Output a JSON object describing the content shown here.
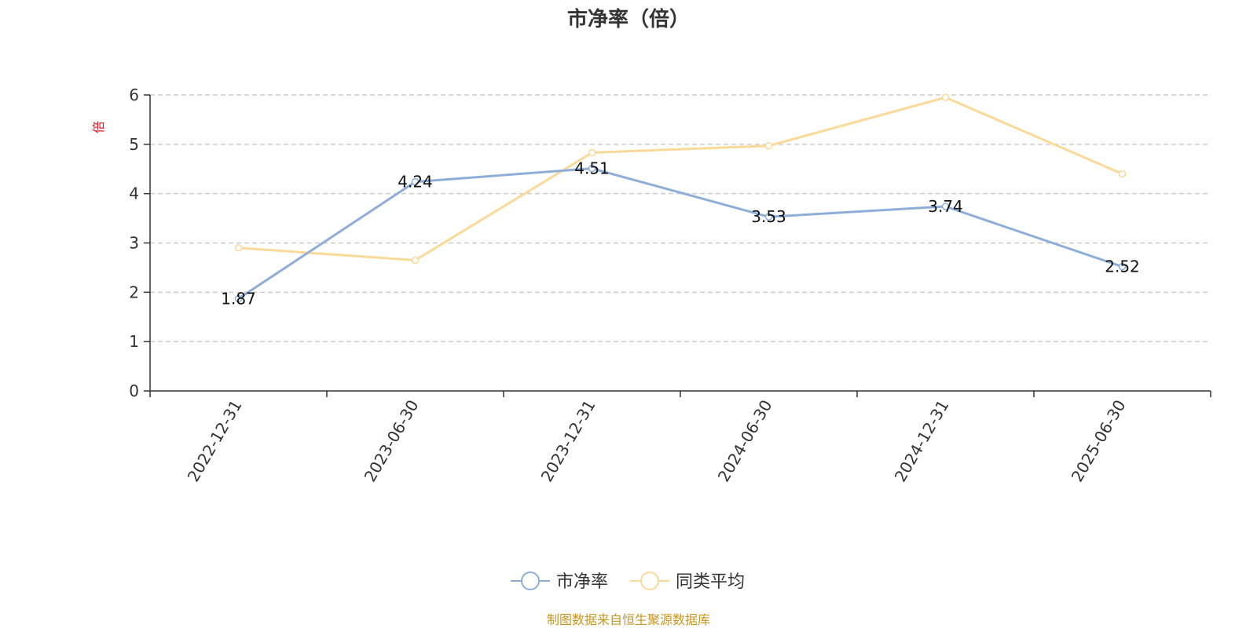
{
  "chart_data": {
    "type": "line",
    "title": "市净率（倍）",
    "ylabel": "倍",
    "xlabel": "",
    "ylim": [
      0,
      6
    ],
    "yticks": [
      0,
      1,
      2,
      3,
      4,
      5,
      6
    ],
    "grid": true,
    "legend_position": "bottom-center",
    "categories": [
      "2022-12-31",
      "2023-06-30",
      "2023-12-31",
      "2024-06-30",
      "2024-12-31",
      "2025-06-30"
    ],
    "series": [
      {
        "name": "市净率",
        "color": "#8eaed8",
        "values": [
          1.87,
          4.24,
          4.51,
          3.53,
          3.74,
          2.52
        ],
        "labels": [
          "1.87",
          "4.24",
          "4.51",
          "3.53",
          "3.74",
          "2.52"
        ],
        "show_labels": true
      },
      {
        "name": "同类平均",
        "color": "#fbd998",
        "values": [
          2.9,
          2.65,
          4.83,
          4.97,
          5.95,
          4.4
        ],
        "show_labels": false
      }
    ],
    "source": "制图数据来自恒生聚源数据库"
  }
}
